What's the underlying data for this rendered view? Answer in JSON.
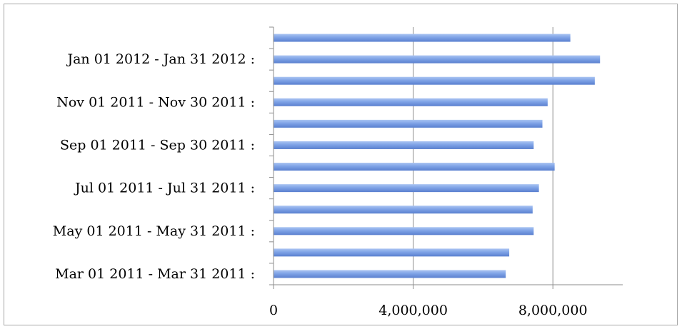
{
  "chart_data": {
    "type": "bar",
    "orientation": "horizontal",
    "title": "",
    "xlabel": "",
    "ylabel": "",
    "categories": [
      "Mar 01 2011 - Mar 31 2011 :",
      "",
      "May 01 2011 - May 31 2011 :",
      "",
      "Jul 01 2011 - Jul 31 2011 :",
      "",
      "Sep 01 2011 - Sep 30 2011 :",
      "",
      "Nov 01 2011 - Nov 30 2011 :",
      "",
      "Jan 01 2012 - Jan 31 2012 :",
      ""
    ],
    "values": [
      6650000,
      6750000,
      7450000,
      7420000,
      7600000,
      8050000,
      7450000,
      7700000,
      7850000,
      9200000,
      9350000,
      8500000
    ],
    "xlim": [
      0,
      10000000
    ],
    "xticks": [
      0,
      4000000,
      8000000
    ],
    "xtick_labels": [
      "0",
      "4,000,000",
      "8,000,000"
    ],
    "grid": true,
    "legend": "none",
    "bar_color": "#7a9fe3"
  }
}
